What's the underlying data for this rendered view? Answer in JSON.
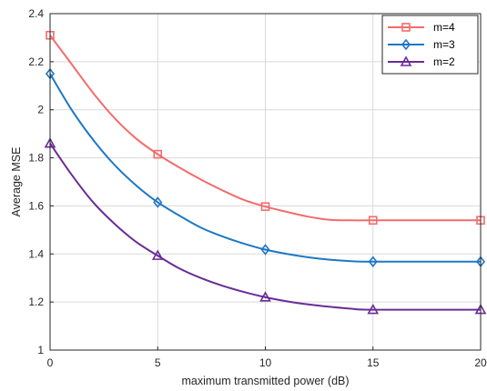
{
  "chart_data": {
    "type": "line",
    "title": "",
    "xlabel": "maximum transmitted power (dB)",
    "ylabel": "Average MSE",
    "xlim": [
      0,
      20
    ],
    "ylim": [
      1,
      2.4
    ],
    "xticks": [
      "0",
      "5",
      "10",
      "15",
      "20"
    ],
    "yticks": [
      "1",
      "1.2",
      "1.4",
      "1.6",
      "1.8",
      "2",
      "2.2",
      "2.4"
    ],
    "grid": true,
    "legend_position": "top-right",
    "x": [
      0,
      5,
      10,
      15,
      20
    ],
    "series": [
      {
        "name": "m=4",
        "color": "#f26c6c",
        "marker": "square",
        "values": [
          2.31,
          1.815,
          1.597,
          1.54,
          1.54
        ],
        "curve": [
          [
            0,
            2.31
          ],
          [
            1,
            2.19
          ],
          [
            2,
            2.07
          ],
          [
            3,
            1.965
          ],
          [
            4,
            1.88
          ],
          [
            5,
            1.815
          ],
          [
            6,
            1.76
          ],
          [
            7,
            1.71
          ],
          [
            8,
            1.665
          ],
          [
            9,
            1.625
          ],
          [
            10,
            1.597
          ],
          [
            11,
            1.575
          ],
          [
            12,
            1.555
          ],
          [
            13,
            1.542
          ],
          [
            14,
            1.54
          ],
          [
            15,
            1.54
          ],
          [
            20,
            1.54
          ]
        ]
      },
      {
        "name": "m=3",
        "color": "#1f77c4",
        "marker": "diamond",
        "values": [
          2.15,
          1.615,
          1.418,
          1.368,
          1.368
        ],
        "curve": [
          [
            0,
            2.15
          ],
          [
            1,
            2.0
          ],
          [
            2,
            1.875
          ],
          [
            3,
            1.77
          ],
          [
            4,
            1.685
          ],
          [
            5,
            1.615
          ],
          [
            6,
            1.56
          ],
          [
            7,
            1.51
          ],
          [
            8,
            1.473
          ],
          [
            9,
            1.443
          ],
          [
            10,
            1.418
          ],
          [
            11,
            1.4
          ],
          [
            12,
            1.386
          ],
          [
            13,
            1.376
          ],
          [
            14,
            1.37
          ],
          [
            15,
            1.368
          ],
          [
            20,
            1.368
          ]
        ]
      },
      {
        "name": "m=2",
        "color": "#6a2c96",
        "marker": "triangle",
        "values": [
          1.86,
          1.393,
          1.22,
          1.168,
          1.168
        ],
        "curve": [
          [
            0,
            1.86
          ],
          [
            1,
            1.73
          ],
          [
            2,
            1.615
          ],
          [
            3,
            1.525
          ],
          [
            4,
            1.45
          ],
          [
            5,
            1.393
          ],
          [
            6,
            1.34
          ],
          [
            7,
            1.3
          ],
          [
            8,
            1.268
          ],
          [
            9,
            1.242
          ],
          [
            10,
            1.22
          ],
          [
            11,
            1.203
          ],
          [
            12,
            1.19
          ],
          [
            13,
            1.18
          ],
          [
            14,
            1.172
          ],
          [
            15,
            1.168
          ],
          [
            20,
            1.168
          ]
        ]
      }
    ]
  }
}
